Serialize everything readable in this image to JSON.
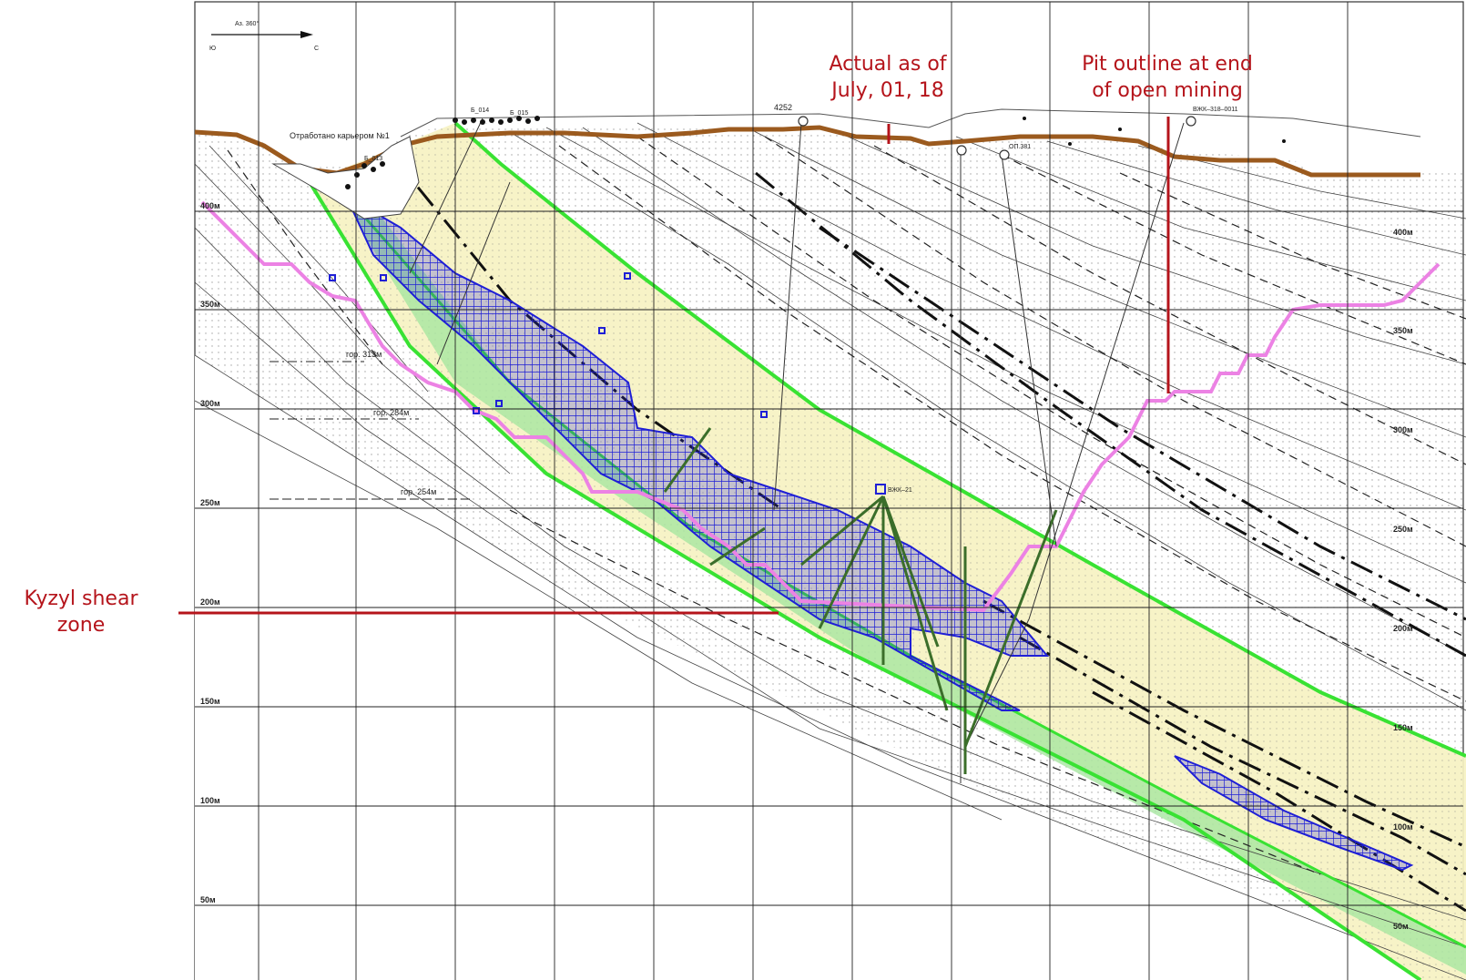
{
  "callouts": {
    "actual_line1": "Actual as of",
    "actual_line2": "July, 01, 18",
    "pit_line1": "Pit outline at end",
    "pit_line2": "of open mining",
    "kyzyl_line1": "Kyzyl shear",
    "kyzyl_line2": "zone"
  },
  "north_arrow": {
    "azimuth": "Аз. 360°",
    "left": "Ю",
    "right": "С"
  },
  "drawing_labels": {
    "mined_out": "Отработано карьером №1",
    "hole_id": "4252",
    "bh_013": "Б_013",
    "bh_014": "Б_014",
    "bh_015": "Б_015",
    "bh_label_a": "ВЖК–318–0011",
    "bh_label_b": "ОП.381",
    "level_313": "гор. 313м",
    "level_284": "гор. 284м",
    "level_254": "гор. 254м",
    "drift_label": "ВЖК–21"
  },
  "elevations_left": [
    "400м",
    "350м",
    "300м",
    "250м",
    "200м",
    "150м",
    "100м",
    "50м"
  ],
  "elevations_right": [
    "400м",
    "350м",
    "300м",
    "250м",
    "200м",
    "150м",
    "100м",
    "50м"
  ],
  "colors": {
    "topography": "#9b5a1e",
    "pit_outline": "#ec82e4",
    "shear_boundary": "#39e233",
    "shear_fill": "#f8f4c8",
    "ore_body": "#1f1fd6",
    "callout": "#b5141b"
  }
}
